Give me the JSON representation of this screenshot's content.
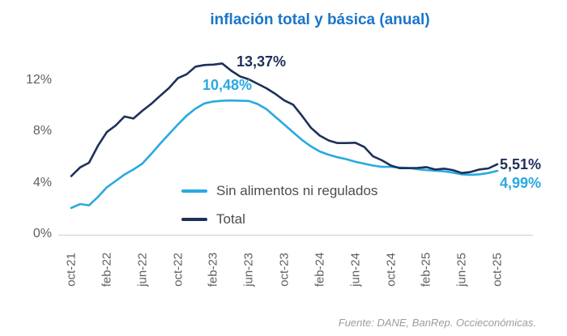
{
  "title": "inflación total y básica (anual)",
  "source_note": "Fuente: DANE, BanRep. Occieconómicas.",
  "colors": {
    "title_blue": "#1B75C8",
    "total_navy": "#1E3059",
    "core_blue": "#29A9E1",
    "axis_text": "#5F5F5F",
    "axis_line": "#D6D6D6",
    "legend_text": "#4D4D4D",
    "source_text": "#9C9C9C"
  },
  "chart_data": {
    "type": "line",
    "title": "inflación total y básica (anual)",
    "xlabel": "",
    "ylabel": "",
    "ylim": [
      0,
      14.5
    ],
    "grid": false,
    "legend_position": "inside-bottom-center",
    "x": [
      "oct-21",
      "nov-21",
      "dic-21",
      "ene-22",
      "feb-22",
      "mar-22",
      "abr-22",
      "may-22",
      "jun-22",
      "jul-22",
      "ago-22",
      "sep-22",
      "oct-22",
      "nov-22",
      "dic-22",
      "ene-23",
      "feb-23",
      "mar-23",
      "abr-23",
      "may-23",
      "jun-23",
      "jul-23",
      "ago-23",
      "sep-23",
      "oct-23",
      "nov-23",
      "dic-23",
      "ene-24",
      "feb-24",
      "mar-24",
      "abr-24",
      "may-24",
      "jun-24",
      "jul-24",
      "ago-24",
      "sep-24",
      "oct-24",
      "nov-24",
      "dic-24",
      "ene-25",
      "feb-25",
      "mar-25",
      "abr-25",
      "may-25",
      "jun-25",
      "jul-25",
      "ago-25",
      "sep-25",
      "oct-25"
    ],
    "x_tick_labels": [
      "oct-21",
      "feb-22",
      "jun-22",
      "oct-22",
      "feb-23",
      "jun-23",
      "oct-23",
      "feb-24",
      "jun-24",
      "oct-24",
      "feb-25",
      "jun-25",
      "oct-25"
    ],
    "y_ticks": [
      "0%",
      "4%",
      "8%",
      "12%"
    ],
    "y_tick_values": [
      0,
      4,
      8,
      12
    ],
    "series": [
      {
        "name": "Sin alimentos ni regulados",
        "color_key": "core_blue",
        "values": [
          2.1,
          2.4,
          2.3,
          2.95,
          3.7,
          4.2,
          4.7,
          5.1,
          5.55,
          6.3,
          7.1,
          7.85,
          8.6,
          9.3,
          9.85,
          10.25,
          10.4,
          10.46,
          10.48,
          10.46,
          10.44,
          10.2,
          9.8,
          9.2,
          8.6,
          8.0,
          7.4,
          6.9,
          6.5,
          6.25,
          6.05,
          5.9,
          5.7,
          5.55,
          5.4,
          5.3,
          5.3,
          5.25,
          5.22,
          5.12,
          5.05,
          5.0,
          4.95,
          4.85,
          4.72,
          4.68,
          4.72,
          4.82,
          4.99
        ]
      },
      {
        "name": "Total",
        "color_key": "total_navy",
        "values": [
          4.58,
          5.26,
          5.62,
          6.94,
          8.01,
          8.53,
          9.23,
          9.07,
          9.67,
          10.21,
          10.84,
          11.44,
          12.22,
          12.53,
          13.12,
          13.25,
          13.28,
          13.37,
          12.82,
          12.36,
          12.13,
          11.78,
          11.43,
          10.99,
          10.48,
          10.15,
          9.28,
          8.35,
          7.74,
          7.36,
          7.16,
          7.16,
          7.18,
          6.86,
          6.12,
          5.81,
          5.41,
          5.2,
          5.2,
          5.22,
          5.28,
          5.09,
          5.16,
          5.05,
          4.82,
          4.9,
          5.1,
          5.18,
          5.51
        ]
      }
    ],
    "annotations": [
      {
        "text": "13,37%",
        "series": "Total",
        "type": "peak"
      },
      {
        "text": "10,48%",
        "series": "Sin alimentos ni regulados",
        "type": "peak"
      },
      {
        "text": "5,51%",
        "series": "Total",
        "type": "last"
      },
      {
        "text": "4,99%",
        "series": "Sin alimentos ni regulados",
        "type": "last"
      }
    ]
  }
}
